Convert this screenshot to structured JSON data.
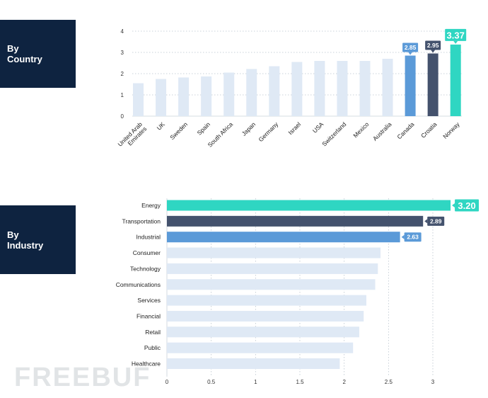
{
  "panels": {
    "country": {
      "line1": "By",
      "line2": "Country"
    },
    "industry": {
      "line1": "By",
      "line2": "Industry"
    }
  },
  "colors": {
    "panel": "#0e2340",
    "default_bar": "#dfe9f5",
    "first": "#2fd6c2",
    "second": "#44526d",
    "third": "#5b9ad8"
  },
  "watermark": "FREEBUF",
  "chart_data": [
    {
      "type": "bar",
      "orientation": "vertical",
      "categories": [
        "United Arab Emirates",
        "UK",
        "Sweden",
        "Spain",
        "South Africa",
        "Japan",
        "Germany",
        "Israel",
        "USA",
        "Switzerland",
        "Mexico",
        "Australia",
        "Canada",
        "Croatia",
        "Norway"
      ],
      "values": [
        1.55,
        1.75,
        1.82,
        1.87,
        2.05,
        2.22,
        2.35,
        2.55,
        2.6,
        2.6,
        2.6,
        2.7,
        2.85,
        2.95,
        3.37
      ],
      "data_labels": {
        "Canada": "2.85",
        "Croatia": "2.95",
        "Norway": "3.37"
      },
      "highlight": {
        "Norway": "first",
        "Croatia": "second",
        "Canada": "third"
      },
      "ylim": [
        0,
        4
      ],
      "yticks": [
        "0",
        "1",
        "2",
        "3",
        "4"
      ],
      "grid": true
    },
    {
      "type": "bar",
      "orientation": "horizontal",
      "categories": [
        "Energy",
        "Transportation",
        "Industrial",
        "Consumer",
        "Technology",
        "Communications",
        "Services",
        "Financial",
        "Retail",
        "Public",
        "Healthcare"
      ],
      "values": [
        3.2,
        2.89,
        2.63,
        2.41,
        2.38,
        2.35,
        2.25,
        2.22,
        2.17,
        2.1,
        1.95
      ],
      "data_labels": {
        "Energy": "3.20",
        "Transportation": "2.89",
        "Industrial": "2.63"
      },
      "highlight": {
        "Energy": "first",
        "Transportation": "second",
        "Industrial": "third"
      },
      "xlim": [
        0,
        3.2
      ],
      "xticks": [
        "0",
        "0.5",
        "1",
        "1.5",
        "2",
        "2.5",
        "3"
      ],
      "grid": true
    }
  ]
}
